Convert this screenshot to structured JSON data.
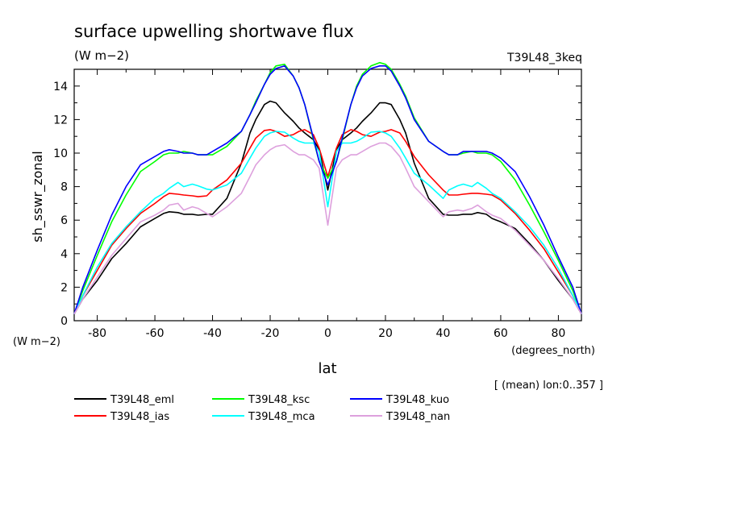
{
  "chart_data": {
    "type": "line",
    "title": "surface upwelling shortwave flux",
    "units": "(W m−2)",
    "experiment_label": "T39L48_3keq",
    "ylabel": "sh_sswr_zonal",
    "yunits": "(W m−2)",
    "xlabel": "lat",
    "xunits": "(degrees_north)",
    "footnote": "[ (mean) lon:0..357 ]",
    "xlim": [
      -88,
      88
    ],
    "ylim": [
      0,
      15
    ],
    "xticks": [
      -80,
      -60,
      -40,
      -20,
      0,
      20,
      40,
      60,
      80
    ],
    "yticks": [
      0,
      2,
      4,
      6,
      8,
      10,
      12,
      14
    ],
    "x": [
      -88,
      -85,
      -80,
      -75,
      -70,
      -65,
      -60,
      -57,
      -55,
      -52,
      -50,
      -47,
      -45,
      -42,
      -40,
      -35,
      -30,
      -27,
      -25,
      -22,
      -20,
      -18,
      -15,
      -12,
      -10,
      -8,
      -5,
      -3,
      0,
      3,
      5,
      8,
      10,
      12,
      15,
      18,
      20,
      22,
      25,
      27,
      30,
      35,
      40,
      42,
      45,
      47,
      50,
      52,
      55,
      57,
      60,
      65,
      70,
      75,
      80,
      85,
      88
    ],
    "series": [
      {
        "name": "T39L48_eml",
        "color": "#000000",
        "values": [
          0.4,
          1.3,
          2.4,
          3.7,
          4.6,
          5.6,
          6.1,
          6.4,
          6.5,
          6.45,
          6.35,
          6.35,
          6.3,
          6.35,
          6.35,
          7.3,
          9.4,
          11.2,
          12.0,
          12.9,
          13.1,
          13.0,
          12.4,
          11.9,
          11.5,
          11.2,
          10.8,
          10.2,
          7.8,
          10.2,
          10.8,
          11.2,
          11.5,
          11.9,
          12.4,
          13.0,
          13.0,
          12.9,
          12.0,
          11.2,
          9.4,
          7.3,
          6.35,
          6.3,
          6.3,
          6.35,
          6.35,
          6.45,
          6.35,
          6.1,
          5.9,
          5.5,
          4.6,
          3.6,
          2.4,
          1.3,
          0.4
        ]
      },
      {
        "name": "T39L48_ias",
        "color": "#ff0000",
        "values": [
          0.4,
          1.5,
          3.0,
          4.5,
          5.5,
          6.4,
          7.0,
          7.4,
          7.6,
          7.55,
          7.5,
          7.45,
          7.4,
          7.45,
          7.8,
          8.4,
          9.4,
          10.3,
          10.9,
          11.35,
          11.4,
          11.3,
          11.0,
          11.1,
          11.3,
          11.4,
          11.1,
          10.3,
          8.6,
          10.3,
          11.1,
          11.4,
          11.3,
          11.1,
          11.0,
          11.25,
          11.3,
          11.4,
          11.2,
          10.7,
          9.8,
          8.7,
          7.8,
          7.5,
          7.5,
          7.55,
          7.6,
          7.6,
          7.55,
          7.5,
          7.2,
          6.4,
          5.4,
          4.3,
          2.9,
          1.5,
          0.4
        ]
      },
      {
        "name": "T39L48_ksc",
        "color": "#00ff00",
        "values": [
          0.4,
          1.8,
          3.9,
          5.9,
          7.5,
          8.9,
          9.5,
          9.9,
          10.0,
          10.0,
          10.1,
          10.0,
          9.9,
          9.9,
          9.9,
          10.4,
          11.3,
          12.3,
          13.1,
          14.1,
          14.8,
          15.2,
          15.3,
          14.6,
          13.9,
          12.9,
          10.8,
          9.5,
          8.5,
          9.5,
          10.8,
          12.9,
          14.0,
          14.7,
          15.2,
          15.4,
          15.3,
          15.0,
          14.1,
          13.4,
          12.1,
          10.7,
          10.1,
          9.9,
          9.9,
          10.0,
          10.1,
          10.0,
          10.0,
          9.9,
          9.5,
          8.4,
          6.9,
          5.3,
          3.6,
          1.8,
          0.4
        ]
      },
      {
        "name": "T39L48_mca",
        "color": "#00ffff",
        "values": [
          0.4,
          1.5,
          3.2,
          4.6,
          5.6,
          6.5,
          7.3,
          7.6,
          7.9,
          8.25,
          8.0,
          8.15,
          8.05,
          7.85,
          7.8,
          8.1,
          8.8,
          9.7,
          10.3,
          11.0,
          11.2,
          11.3,
          11.25,
          10.9,
          10.7,
          10.6,
          10.6,
          10.1,
          6.8,
          10.1,
          10.6,
          10.6,
          10.7,
          10.9,
          11.25,
          11.3,
          11.2,
          11.0,
          10.3,
          9.7,
          8.8,
          8.1,
          7.3,
          7.8,
          8.05,
          8.15,
          8.0,
          8.25,
          7.9,
          7.6,
          7.3,
          6.5,
          5.6,
          4.5,
          3.1,
          1.5,
          0.4
        ]
      },
      {
        "name": "T39L48_kuo",
        "color": "#0000ff",
        "values": [
          0.4,
          2.0,
          4.2,
          6.3,
          8.0,
          9.3,
          9.8,
          10.1,
          10.2,
          10.1,
          10.0,
          10.0,
          9.9,
          9.9,
          10.1,
          10.6,
          11.3,
          12.3,
          13.0,
          14.1,
          14.7,
          15.05,
          15.2,
          14.6,
          13.9,
          12.9,
          10.9,
          9.5,
          8.1,
          9.5,
          10.9,
          12.9,
          13.9,
          14.6,
          15.05,
          15.2,
          15.2,
          14.9,
          14.0,
          13.3,
          12.0,
          10.7,
          10.1,
          9.9,
          9.9,
          10.1,
          10.1,
          10.1,
          10.1,
          10.0,
          9.7,
          8.9,
          7.4,
          5.7,
          3.8,
          2.0,
          0.4
        ]
      },
      {
        "name": "T39L48_nan",
        "color": "#dda0dd",
        "values": [
          0.4,
          1.3,
          2.6,
          3.9,
          4.9,
          5.9,
          6.3,
          6.6,
          6.9,
          7.0,
          6.6,
          6.8,
          6.7,
          6.4,
          6.2,
          6.8,
          7.6,
          8.6,
          9.3,
          9.9,
          10.2,
          10.4,
          10.5,
          10.1,
          9.9,
          9.9,
          9.6,
          9.1,
          5.7,
          9.1,
          9.6,
          9.9,
          9.9,
          10.1,
          10.4,
          10.6,
          10.6,
          10.4,
          9.8,
          9.1,
          8.0,
          7.1,
          6.2,
          6.5,
          6.6,
          6.55,
          6.7,
          6.9,
          6.5,
          6.3,
          6.1,
          5.4,
          4.5,
          3.6,
          2.5,
          1.3,
          0.4
        ]
      }
    ]
  }
}
